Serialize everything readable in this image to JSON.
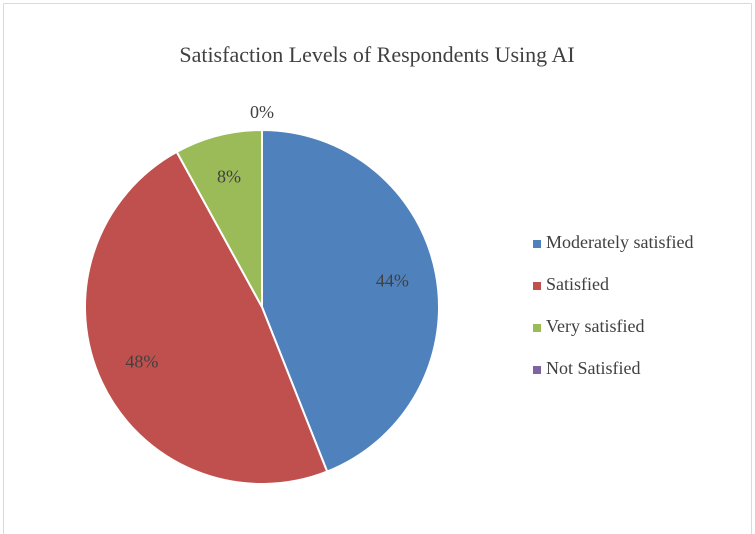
{
  "chart_data": {
    "type": "pie",
    "title": "Satisfaction Levels of Respondents Using AI",
    "categories": [
      "Moderately satisfied",
      "Satisfied",
      "Very satisfied",
      "Not Satisfied"
    ],
    "values": [
      44,
      48,
      8,
      0
    ],
    "value_labels": [
      "44%",
      "48%",
      "8%",
      "0%"
    ],
    "colors": [
      "#4f81bd",
      "#c0504d",
      "#9bbb59",
      "#8064a2"
    ],
    "legend": "right"
  }
}
